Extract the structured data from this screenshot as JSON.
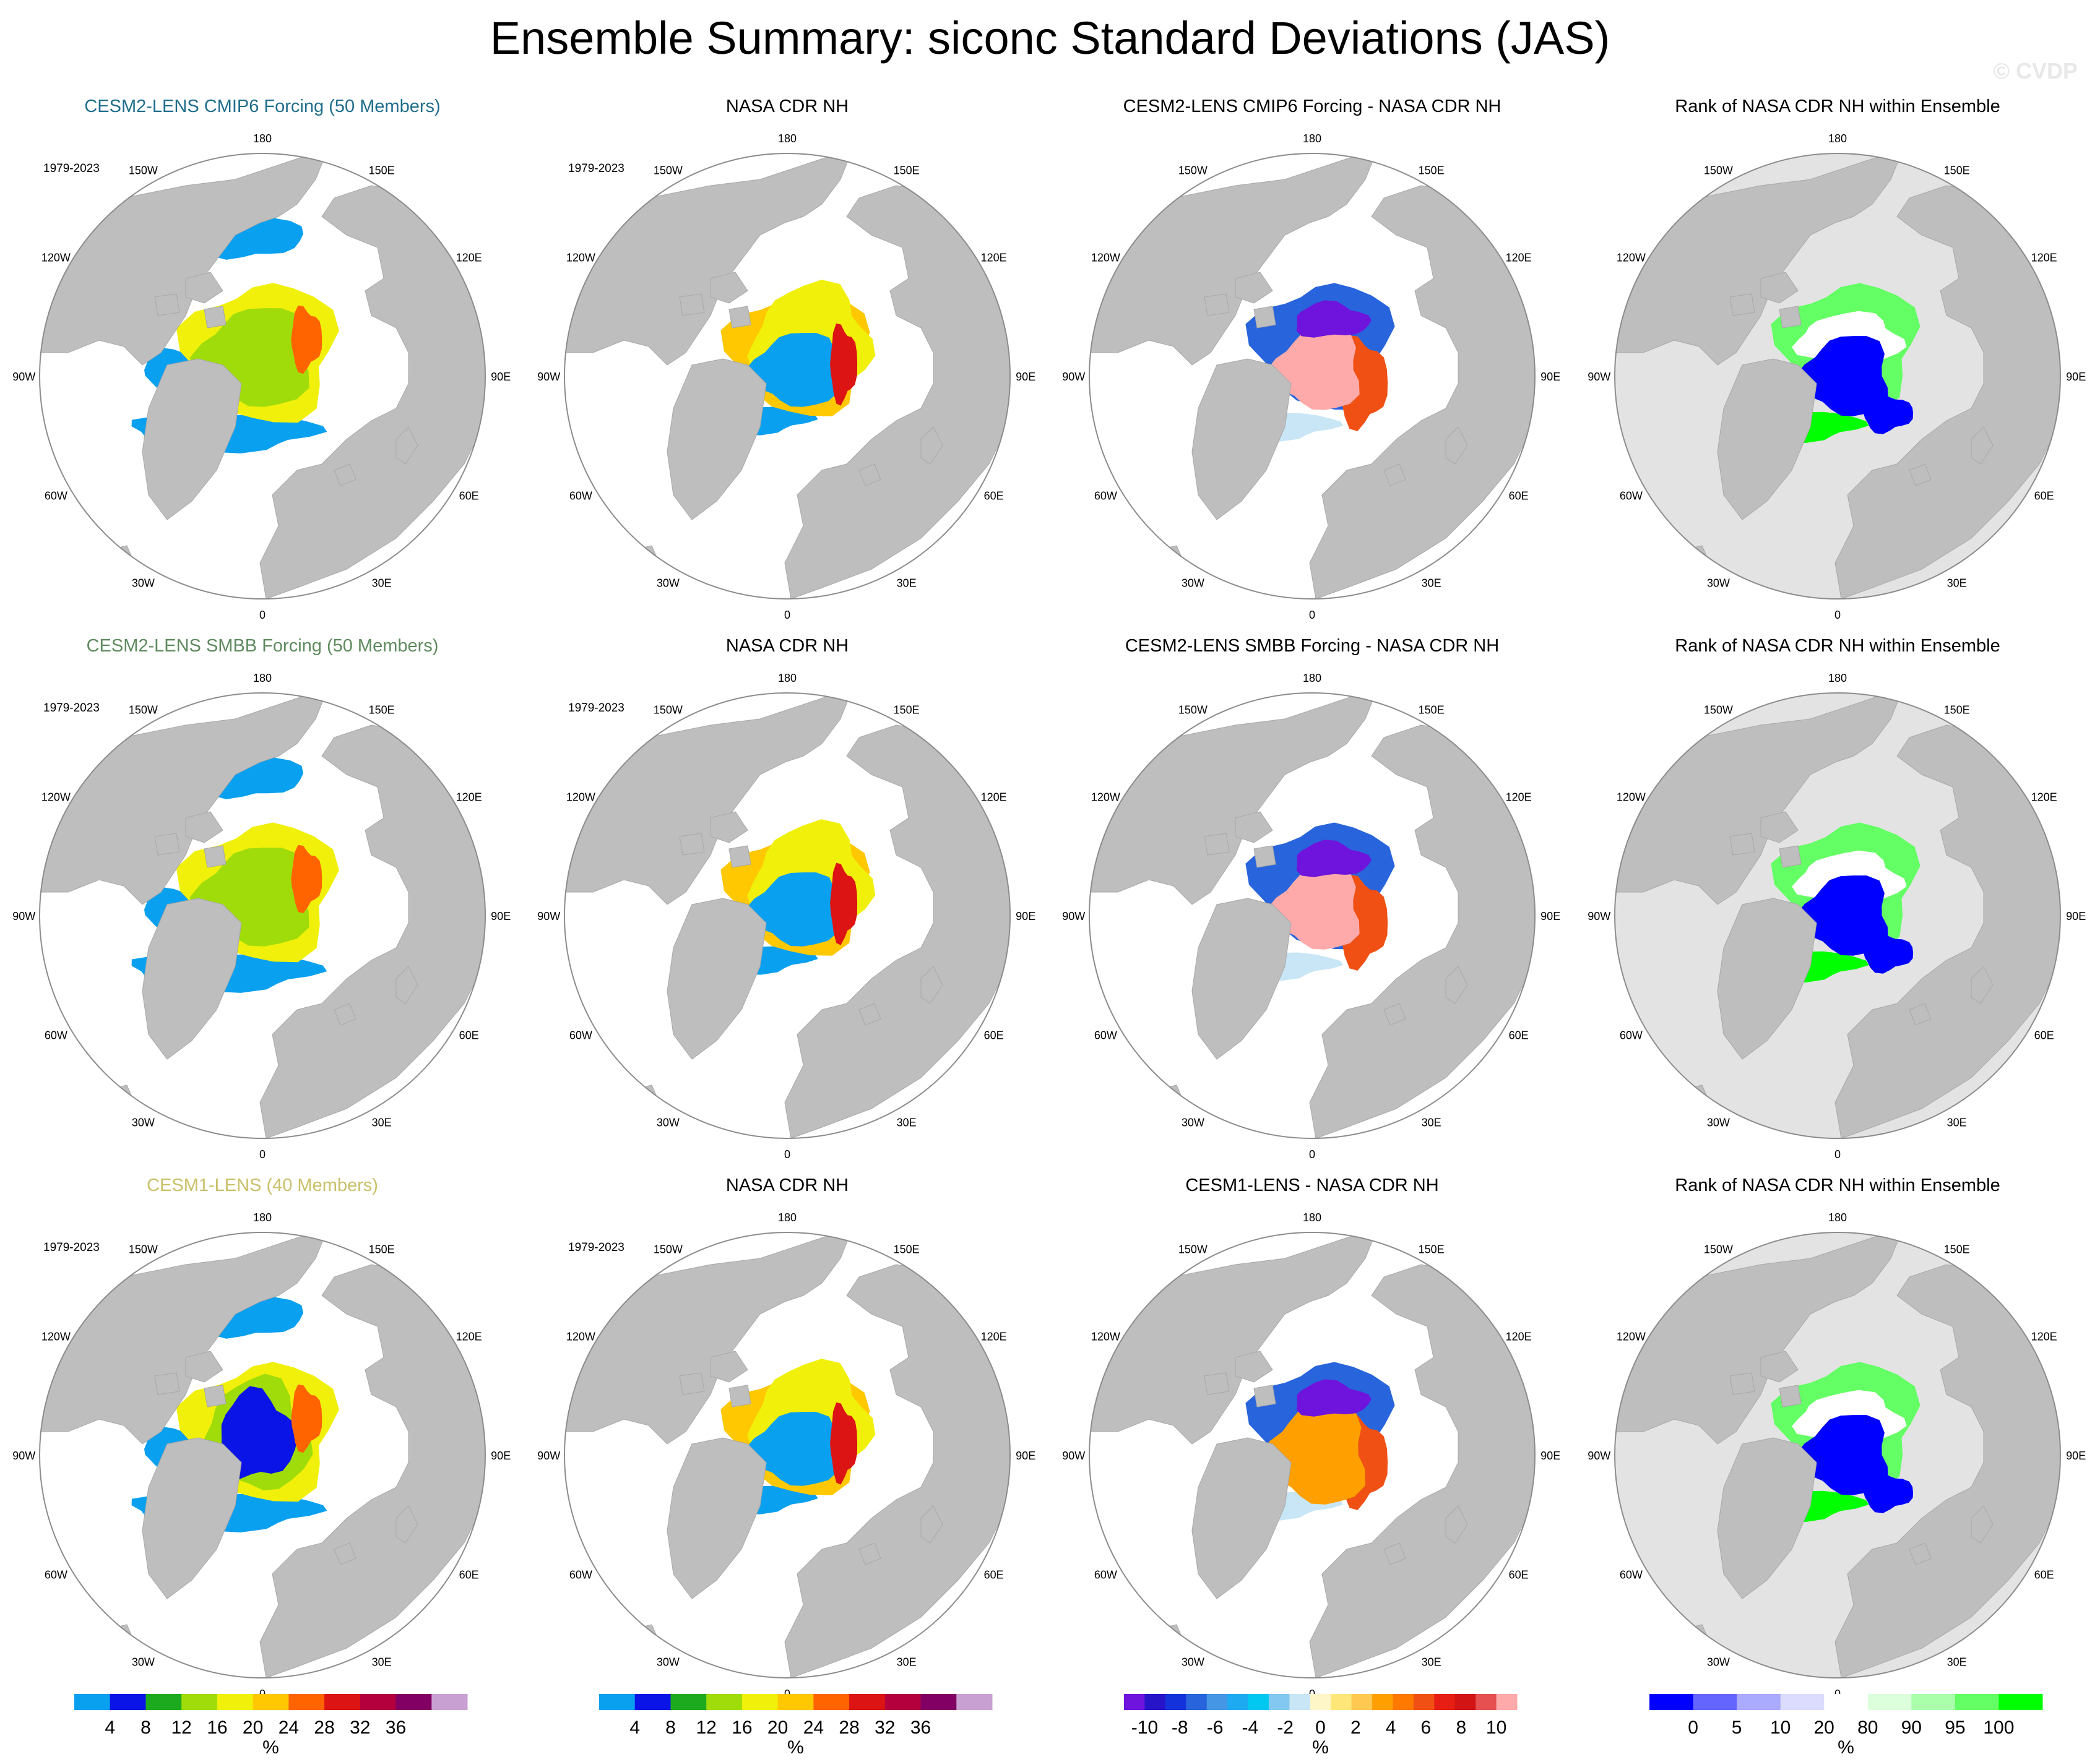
{
  "title": "Ensemble Summary: siconc Standard Deviations (JAS)",
  "watermark": "© CVDP",
  "period": "1979-2023",
  "lon_labels": [
    "180",
    "150E",
    "120E",
    "90E",
    "60E",
    "30E",
    "0",
    "30W",
    "60W",
    "90W",
    "120W",
    "150W"
  ],
  "colors": {
    "land": "#bebebe",
    "ocean": "#ffffff",
    "outline": "#8c8c8c",
    "rank_ocean": "#e3e3e3",
    "title_cmip6": "#1f6e8c",
    "title_smbb": "#5e8a5e",
    "title_cesm1": "#c9c06a"
  },
  "rows": [
    {
      "panels": [
        {
          "title": "CESM2-LENS CMIP6 Forcing (50 Members)",
          "title_color": "#1f6e8c",
          "type": "stddev_model",
          "show_period": true
        },
        {
          "title": "NASA CDR NH",
          "title_color": "#000000",
          "type": "stddev_obs",
          "show_period": true
        },
        {
          "title": "CESM2-LENS CMIP6 Forcing - NASA CDR NH",
          "title_color": "#000000",
          "type": "diff_pos",
          "show_period": false
        },
        {
          "title": "Rank of NASA CDR NH within Ensemble",
          "title_color": "#000000",
          "type": "rank",
          "show_period": false
        }
      ]
    },
    {
      "panels": [
        {
          "title": "CESM2-LENS SMBB Forcing (50 Members)",
          "title_color": "#5e8a5e",
          "type": "stddev_model",
          "show_period": true
        },
        {
          "title": "NASA CDR NH",
          "title_color": "#000000",
          "type": "stddev_obs",
          "show_period": true
        },
        {
          "title": "CESM2-LENS SMBB Forcing - NASA CDR NH",
          "title_color": "#000000",
          "type": "diff_pos",
          "show_period": false
        },
        {
          "title": "Rank of NASA CDR NH within Ensemble",
          "title_color": "#000000",
          "type": "rank",
          "show_period": false
        }
      ]
    },
    {
      "panels": [
        {
          "title": "CESM1-LENS (40 Members)",
          "title_color": "#c9c06a",
          "type": "stddev_model_b",
          "show_period": true
        },
        {
          "title": "NASA CDR NH",
          "title_color": "#000000",
          "type": "stddev_obs",
          "show_period": true
        },
        {
          "title": "CESM1-LENS - NASA CDR NH",
          "title_color": "#000000",
          "type": "diff_neg",
          "show_period": false
        },
        {
          "title": "Rank of NASA CDR NH within Ensemble",
          "title_color": "#000000",
          "type": "rank",
          "show_period": false
        }
      ]
    }
  ],
  "colorbars": [
    {
      "unit": "%",
      "colors": [
        "#0aa0f0",
        "#0a14e6",
        "#1eaa1e",
        "#a0dc0a",
        "#f0f00a",
        "#ffc800",
        "#ff6400",
        "#dc1414",
        "#b4003c",
        "#820064",
        "#c8a0d2"
      ],
      "labels": [
        "4",
        "8",
        "12",
        "16",
        "20",
        "24",
        "28",
        "32",
        "36"
      ]
    },
    {
      "unit": "%",
      "colors": [
        "#0aa0f0",
        "#0a14e6",
        "#1eaa1e",
        "#a0dc0a",
        "#f0f00a",
        "#ffc800",
        "#ff6400",
        "#dc1414",
        "#b4003c",
        "#820064",
        "#c8a0d2"
      ],
      "labels": [
        "4",
        "8",
        "12",
        "16",
        "20",
        "24",
        "28",
        "32",
        "36"
      ]
    },
    {
      "unit": "%",
      "colors": [
        "#6e14dc",
        "#2814c8",
        "#1432dc",
        "#2864dc",
        "#4696e6",
        "#1eaaf0",
        "#00c8f0",
        "#82c8f0",
        "#c8e6f5",
        "#fff6c8",
        "#ffe678",
        "#ffc850",
        "#ffa000",
        "#ff7800",
        "#f05014",
        "#e61e14",
        "#d21414",
        "#e65050",
        "#ffaaaa"
      ],
      "labels": [
        "-10",
        "-8",
        "-6",
        "-4",
        "-2",
        "0",
        "2",
        "4",
        "6",
        "8",
        "10"
      ]
    },
    {
      "unit": "%",
      "colors": [
        "#0000ff",
        "#6464ff",
        "#aaaaff",
        "#dcdcff",
        "#ffffff",
        "#dcffdc",
        "#aaffaa",
        "#64ff64",
        "#00ff00"
      ],
      "labels": [
        "0",
        "5",
        "10",
        "20",
        "80",
        "90",
        "95",
        "100"
      ]
    }
  ]
}
